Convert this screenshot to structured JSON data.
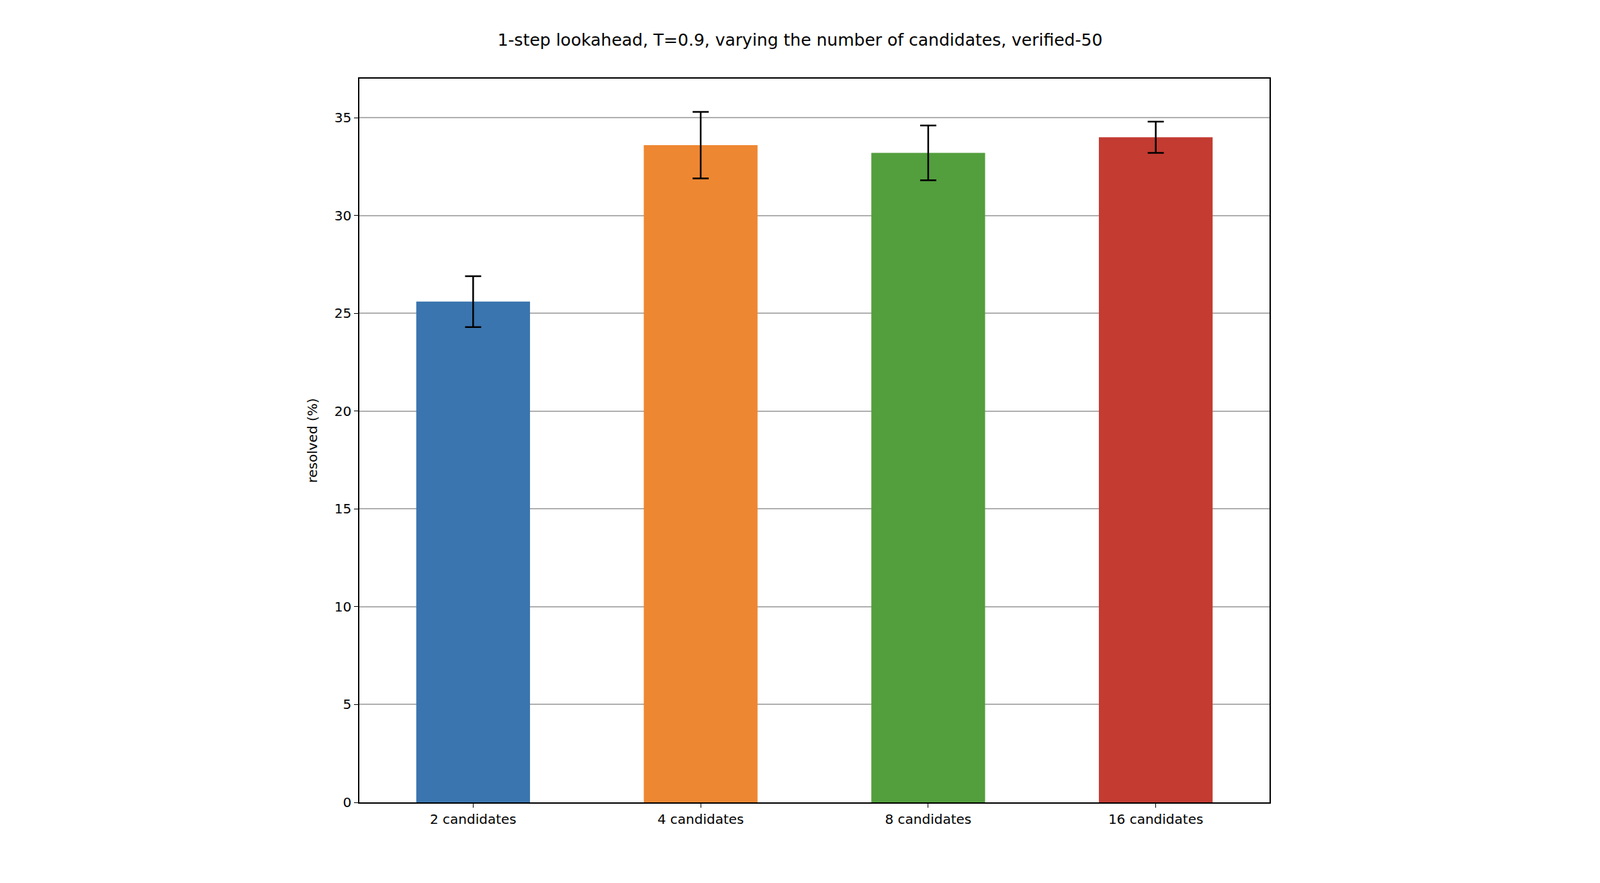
{
  "chart_data": {
    "type": "bar",
    "title": "1-step lookahead, T=0.9, varying the number of candidates, verified-50",
    "y_label": "resolved (%)",
    "categories": [
      "2 candidates",
      "4 candidates",
      "8 candidates",
      "16 candidates"
    ],
    "values": [
      25.6,
      33.6,
      33.2,
      34.0
    ],
    "errors": [
      1.3,
      1.7,
      1.4,
      0.8
    ],
    "colors": [
      "#3a75af",
      "#ee8732",
      "#539e3d",
      "#c33b31"
    ],
    "ylim": [
      0,
      37
    ],
    "yticks": [
      0,
      5,
      10,
      15,
      20,
      25,
      30,
      35
    ],
    "grid": true
  }
}
